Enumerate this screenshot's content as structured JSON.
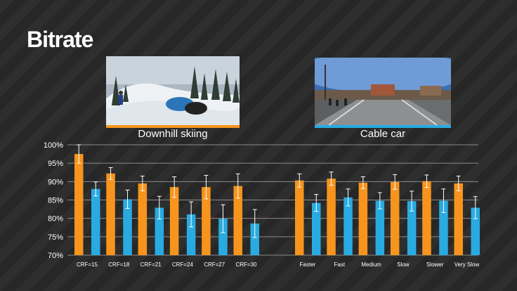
{
  "slide": {
    "title": "Bitrate"
  },
  "thumbnails": [
    {
      "caption": "Downhill skiing",
      "accent": "#f7941d"
    },
    {
      "caption": "Cable car",
      "accent": "#29abe2"
    }
  ],
  "chart_data": {
    "type": "bar",
    "title": "",
    "xlabel": "",
    "ylabel": "",
    "ylim": [
      70,
      100
    ],
    "yticks": [
      70,
      75,
      80,
      85,
      90,
      95,
      100
    ],
    "ytick_suffix": "%",
    "grid": true,
    "legend": "none",
    "groups": [
      {
        "categories": [
          "CRF=15",
          "CRF=18",
          "CRF=21",
          "CRF=24",
          "CRF=27",
          "CRF=30"
        ]
      },
      {
        "categories": [
          "Faster",
          "Fast",
          "Medium",
          "Slow",
          "Slower",
          "Very Slow"
        ]
      }
    ],
    "categories": [
      "CRF=15",
      "CRF=18",
      "CRF=21",
      "CRF=24",
      "CRF=27",
      "CRF=30",
      "Faster",
      "Fast",
      "Medium",
      "Slow",
      "Slower",
      "Very Slow"
    ],
    "series": [
      {
        "color": "#f7941d",
        "values": [
          97.5,
          92.2,
          89.5,
          88.5,
          88.5,
          88.8,
          90.3,
          90.8,
          89.7,
          89.9,
          90.1,
          89.5
        ],
        "errors": [
          2.5,
          1.6,
          2.0,
          2.8,
          3.2,
          3.3,
          1.8,
          1.8,
          1.6,
          2.0,
          1.7,
          2.0
        ]
      },
      {
        "color": "#29abe2",
        "values": [
          88.0,
          85.2,
          82.9,
          81.1,
          79.9,
          78.6,
          84.2,
          85.7,
          84.8,
          84.7,
          84.8,
          82.9
        ],
        "errors": [
          1.9,
          2.5,
          3.1,
          3.4,
          3.8,
          3.8,
          2.3,
          2.3,
          2.2,
          2.7,
          3.2,
          3.0
        ]
      }
    ]
  }
}
